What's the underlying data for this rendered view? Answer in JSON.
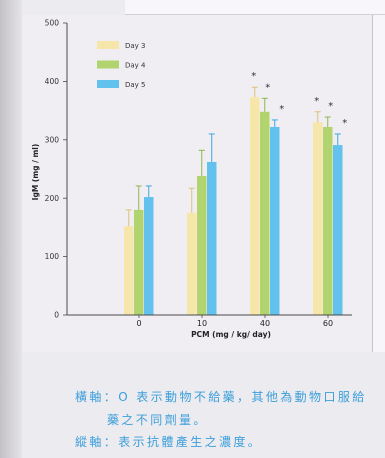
{
  "chart_data": {
    "type": "bar",
    "categories": [
      "0",
      "10",
      "40",
      "60"
    ],
    "xlabel": "PCM (mg / kg/ day)",
    "ylabel": "IgM (mg / ml)",
    "ylim": [
      0,
      500
    ],
    "yticks": [
      0,
      100,
      200,
      300,
      400,
      500
    ],
    "grid": false,
    "legend": "top-left",
    "series": [
      {
        "name": "Day 3",
        "color": "#f7e6a9",
        "error_color": "#dcc27a",
        "values": [
          152,
          175,
          373,
          330
        ],
        "error": [
          28,
          42,
          17,
          18
        ],
        "markers": [
          "",
          "",
          "*",
          "*"
        ]
      },
      {
        "name": "Day 4",
        "color": "#b2d46e",
        "error_color": "#8fb650",
        "values": [
          180,
          238,
          348,
          322
        ],
        "error": [
          41,
          44,
          23,
          17
        ],
        "markers": [
          "",
          "",
          "*",
          "*"
        ]
      },
      {
        "name": "Day 5",
        "color": "#63c1ee",
        "error_color": "#3fa6dd",
        "values": [
          202,
          262,
          322,
          291
        ],
        "error": [
          19,
          48,
          12,
          19
        ],
        "markers": [
          "",
          "",
          "*",
          "*"
        ]
      }
    ]
  },
  "caption": {
    "line1": "橫軸：O 表示動物不給藥，其他為動物口服給",
    "line2": "藥之不同劑量。",
    "line3": "縱軸：表示抗體產生之濃度。"
  }
}
